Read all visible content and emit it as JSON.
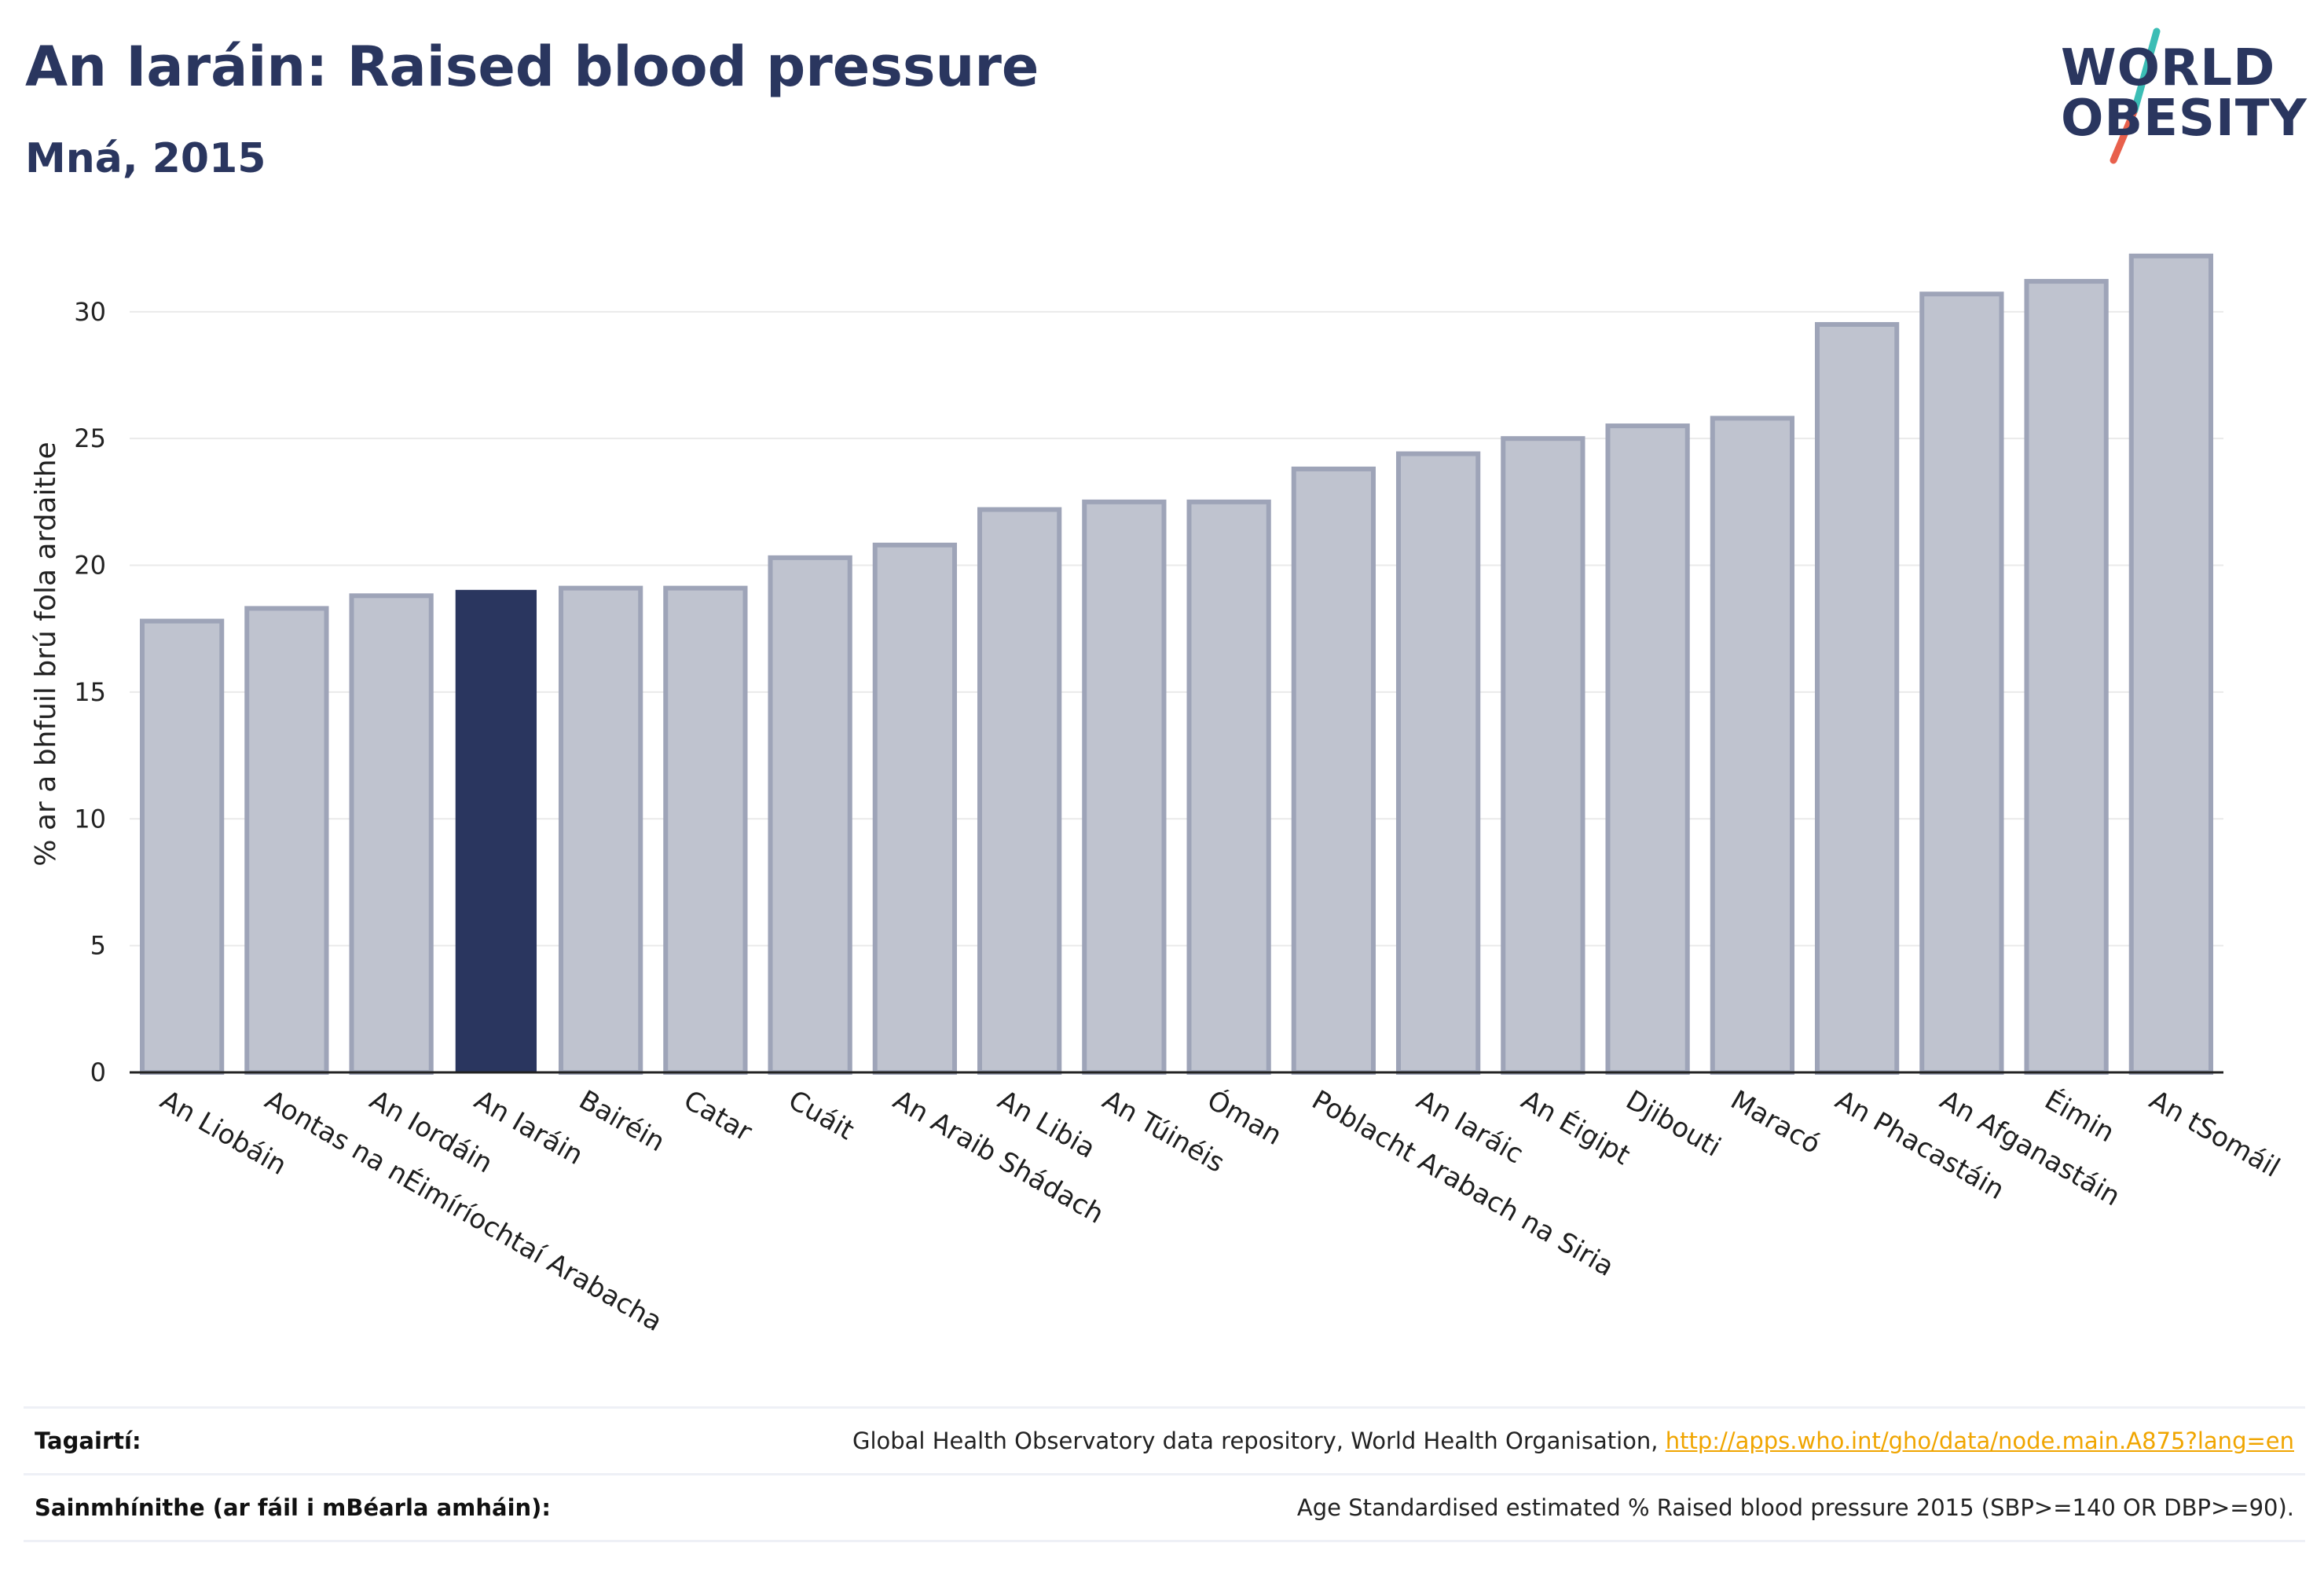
{
  "header": {
    "title": "An Iaráin: Raised blood pressure",
    "subtitle": "Mná, 2015"
  },
  "logo": {
    "line1": "WORLD",
    "line2": "OBESITY",
    "colors": {
      "text": "#2a365f",
      "slash_top": "#3bbdb5",
      "slash_bottom": "#e8604c"
    }
  },
  "chart_data": {
    "type": "bar",
    "title": "",
    "xlabel": "",
    "ylabel": "% ar a bhfuil brú fola ardaithe",
    "ylim": [
      0,
      33
    ],
    "yticks": [
      0,
      5,
      10,
      15,
      20,
      25,
      30
    ],
    "grid": true,
    "legend": "none",
    "highlight_color": "#2a365f",
    "bar_color": "#bfc3cf",
    "bar_edge_color": "#9ea4b8",
    "categories": [
      "An Liobáin",
      "Aontas na nÉimíríochtaí Arabacha",
      "An Iordáin",
      "An Iaráin",
      "Bairéin",
      "Catar",
      "Cuáit",
      "An Araib Shádach",
      "An Libia",
      "An Túinéis",
      "Óman",
      "Poblacht Arabach na Siria",
      "An Iaráic",
      "An Éigipt",
      "Djibouti",
      "Maracó",
      "An Phacastáin",
      "An Afganastáin",
      "Éimin",
      "An tSomáil"
    ],
    "values": [
      17.8,
      18.3,
      18.8,
      19.0,
      19.1,
      19.1,
      20.3,
      20.8,
      22.2,
      22.5,
      22.5,
      23.8,
      24.4,
      25.0,
      25.5,
      25.8,
      29.5,
      30.7,
      31.2,
      32.2
    ],
    "highlight_index": 3
  },
  "references": {
    "sources_label": "Tagairtí:",
    "sources_text": "Global Health Observatory data repository, World Health Organisation, ",
    "sources_link": "http://apps.who.int/gho/data/node.main.A875?lang=en",
    "definitions_label": "Sainmhínithe (ar fáil i mBéarla amháin):",
    "definitions_text": "Age Standardised estimated % Raised blood pressure 2015 (SBP>=140 OR DBP>=90)."
  }
}
